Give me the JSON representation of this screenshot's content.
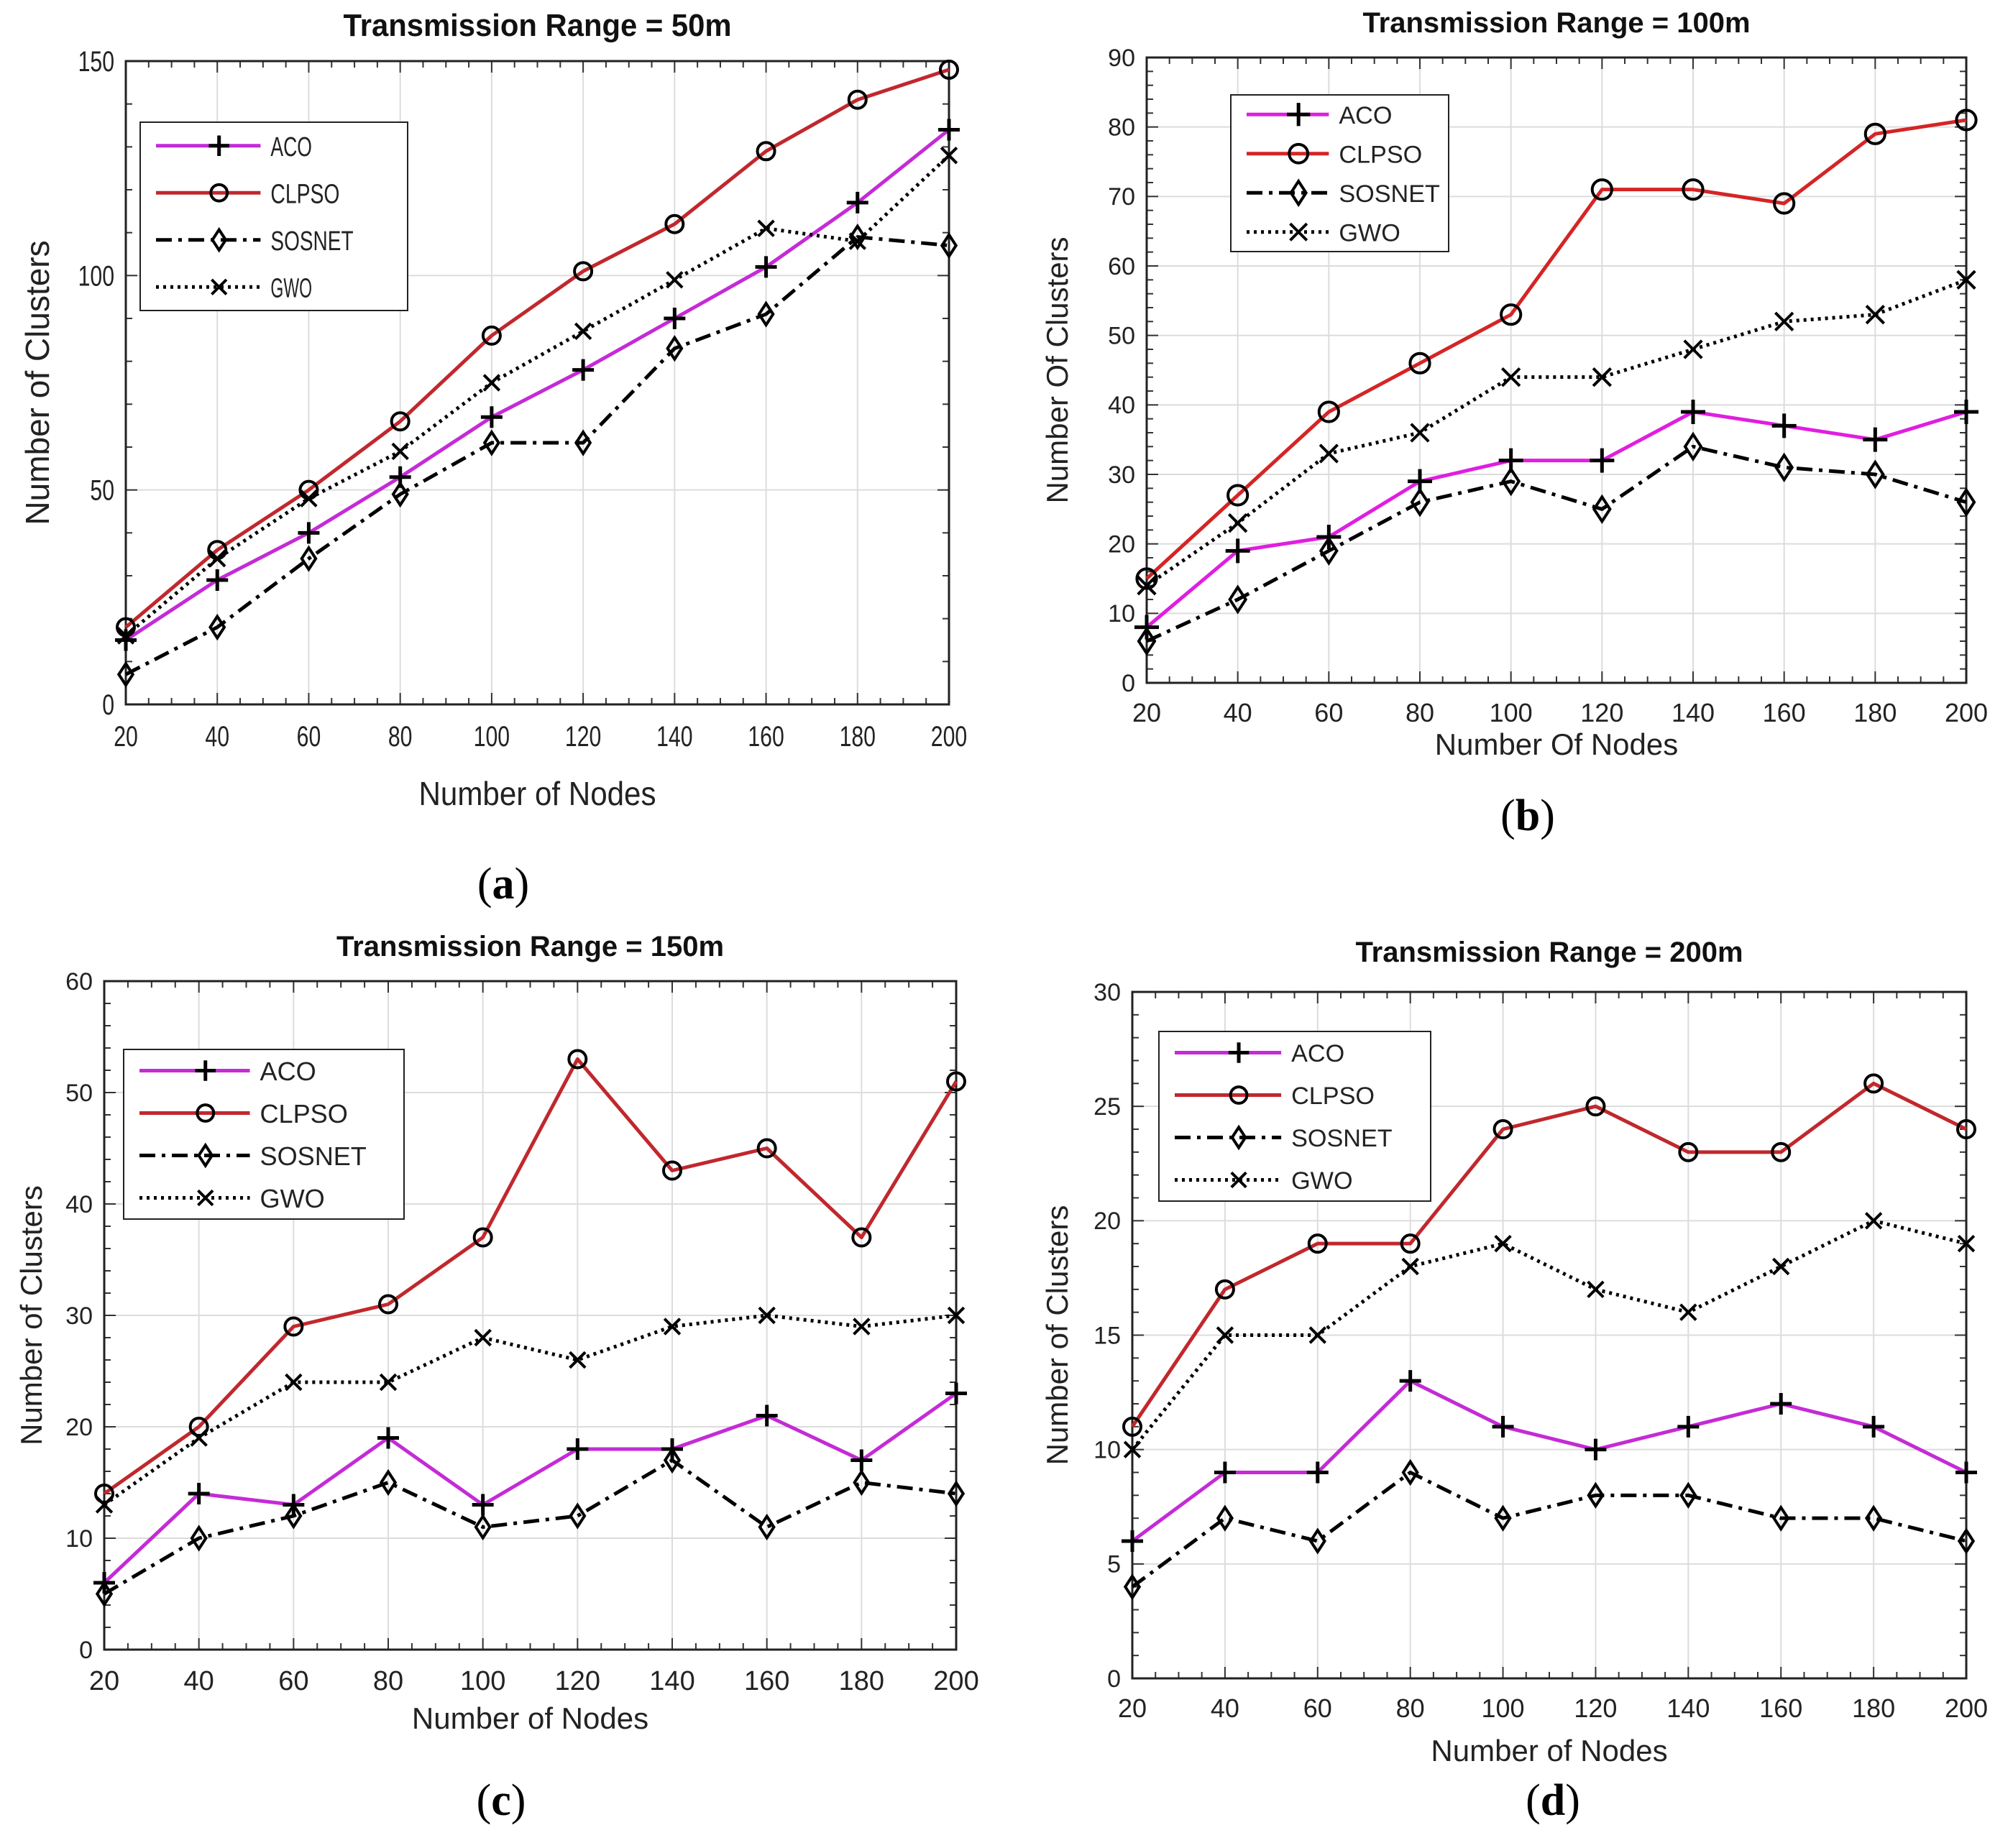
{
  "figure": {
    "panels": [
      {
        "label_open": "(",
        "letter": "a",
        "label_close": ")"
      },
      {
        "label_open": "(",
        "letter": "b",
        "label_close": ")"
      },
      {
        "label_open": "(",
        "letter": "c",
        "label_close": ")"
      },
      {
        "label_open": "(",
        "letter": "d",
        "label_close": ")"
      }
    ]
  },
  "chart_data": [
    {
      "type": "line",
      "title": "Transmission Range = 50m",
      "xlabel": "Number of Nodes",
      "ylabel": "Number of Clusters",
      "x": [
        20,
        40,
        60,
        80,
        100,
        120,
        140,
        160,
        180,
        200
      ],
      "xlim": [
        20,
        200
      ],
      "ylim": [
        0,
        150
      ],
      "xticks": [
        20,
        40,
        60,
        80,
        100,
        120,
        140,
        160,
        180,
        200
      ],
      "yticks": [
        0,
        50,
        100,
        150
      ],
      "grid": true,
      "legend_position": "top-left",
      "series": [
        {
          "name": "ACO",
          "color": "#c42bd6",
          "dash": "solid",
          "marker": "plus",
          "values": [
            15,
            29,
            40,
            53,
            67,
            78,
            90,
            102,
            117,
            134
          ]
        },
        {
          "name": "CLPSO",
          "color": "#c0282d",
          "dash": "solid",
          "marker": "circle",
          "values": [
            18,
            36,
            50,
            66,
            86,
            101,
            112,
            129,
            141,
            148
          ]
        },
        {
          "name": "SOSNET",
          "color": "#000000",
          "dash": "dashdot",
          "marker": "diamond",
          "values": [
            7,
            18,
            34,
            49,
            61,
            61,
            83,
            91,
            109,
            107
          ]
        },
        {
          "name": "GWO",
          "color": "#000000",
          "dash": "dotted",
          "marker": "x",
          "values": [
            16,
            34,
            48,
            59,
            75,
            87,
            99,
            111,
            108,
            128
          ]
        }
      ]
    },
    {
      "type": "line",
      "title": "Transmission Range = 100m",
      "xlabel": "Number Of Nodes",
      "ylabel": "Number Of Clusters",
      "x": [
        20,
        40,
        60,
        80,
        100,
        120,
        140,
        160,
        180,
        200
      ],
      "xlim": [
        20,
        200
      ],
      "ylim": [
        0,
        90
      ],
      "xticks": [
        20,
        40,
        60,
        80,
        100,
        120,
        140,
        160,
        180,
        200
      ],
      "yticks": [
        0,
        10,
        20,
        30,
        40,
        50,
        60,
        70,
        80,
        90
      ],
      "grid": true,
      "legend_position": "top-left",
      "series": [
        {
          "name": "ACO",
          "color": "#e01ee0",
          "dash": "solid",
          "marker": "plus",
          "values": [
            8,
            19,
            21,
            29,
            32,
            32,
            39,
            37,
            35,
            39
          ]
        },
        {
          "name": "CLPSO",
          "color": "#d42525",
          "dash": "solid",
          "marker": "circle",
          "values": [
            15,
            27,
            39,
            46,
            53,
            71,
            71,
            69,
            79,
            81
          ]
        },
        {
          "name": "SOSNET",
          "color": "#000000",
          "dash": "dashdot",
          "marker": "diamond",
          "values": [
            6,
            12,
            19,
            26,
            29,
            25,
            34,
            31,
            30,
            26
          ]
        },
        {
          "name": "GWO",
          "color": "#000000",
          "dash": "dotted",
          "marker": "x",
          "values": [
            14,
            23,
            33,
            36,
            44,
            44,
            48,
            52,
            53,
            58
          ]
        }
      ]
    },
    {
      "type": "line",
      "title": "Transmission Range = 150m",
      "xlabel": "Number of Nodes",
      "ylabel": "Number of Clusters",
      "x": [
        20,
        40,
        60,
        80,
        100,
        120,
        140,
        160,
        180,
        200
      ],
      "xlim": [
        20,
        200
      ],
      "ylim": [
        0,
        60
      ],
      "xticks": [
        20,
        40,
        60,
        80,
        100,
        120,
        140,
        160,
        180,
        200
      ],
      "yticks": [
        0,
        10,
        20,
        30,
        40,
        50,
        60
      ],
      "grid": true,
      "legend_position": "top-left",
      "series": [
        {
          "name": "ACO",
          "color": "#c42bd6",
          "dash": "solid",
          "marker": "plus",
          "values": [
            6,
            14,
            13,
            19,
            13,
            18,
            18,
            21,
            17,
            23
          ]
        },
        {
          "name": "CLPSO",
          "color": "#c0282d",
          "dash": "solid",
          "marker": "circle",
          "values": [
            14,
            20,
            29,
            31,
            37,
            53,
            43,
            45,
            37,
            51
          ]
        },
        {
          "name": "SOSNET",
          "color": "#000000",
          "dash": "dashdot",
          "marker": "diamond",
          "values": [
            5,
            10,
            12,
            15,
            11,
            12,
            17,
            11,
            15,
            14
          ]
        },
        {
          "name": "GWO",
          "color": "#000000",
          "dash": "dotted",
          "marker": "x",
          "values": [
            13,
            19,
            24,
            24,
            28,
            26,
            29,
            30,
            29,
            30
          ]
        }
      ]
    },
    {
      "type": "line",
      "title": "Transmission Range = 200m",
      "xlabel": "Number of Nodes",
      "ylabel": "Number of Clusters",
      "x": [
        20,
        40,
        60,
        80,
        100,
        120,
        140,
        160,
        180,
        200
      ],
      "xlim": [
        20,
        200
      ],
      "ylim": [
        0,
        30
      ],
      "xticks": [
        20,
        40,
        60,
        80,
        100,
        120,
        140,
        160,
        180,
        200
      ],
      "yticks": [
        0,
        5,
        10,
        15,
        20,
        25,
        30
      ],
      "grid": true,
      "legend_position": "top-left",
      "series": [
        {
          "name": "ACO",
          "color": "#c42bd6",
          "dash": "solid",
          "marker": "plus",
          "values": [
            6,
            9,
            9,
            13,
            11,
            10,
            11,
            12,
            11,
            9
          ]
        },
        {
          "name": "CLPSO",
          "color": "#c0282d",
          "dash": "solid",
          "marker": "circle",
          "values": [
            11,
            17,
            19,
            19,
            24,
            25,
            23,
            23,
            26,
            24
          ]
        },
        {
          "name": "SOSNET",
          "color": "#000000",
          "dash": "dashdot",
          "marker": "diamond",
          "values": [
            4,
            7,
            6,
            9,
            7,
            8,
            8,
            7,
            7,
            6
          ]
        },
        {
          "name": "GWO",
          "color": "#000000",
          "dash": "dotted",
          "marker": "x",
          "values": [
            10,
            15,
            15,
            18,
            19,
            17,
            16,
            18,
            20,
            19
          ]
        }
      ]
    }
  ]
}
